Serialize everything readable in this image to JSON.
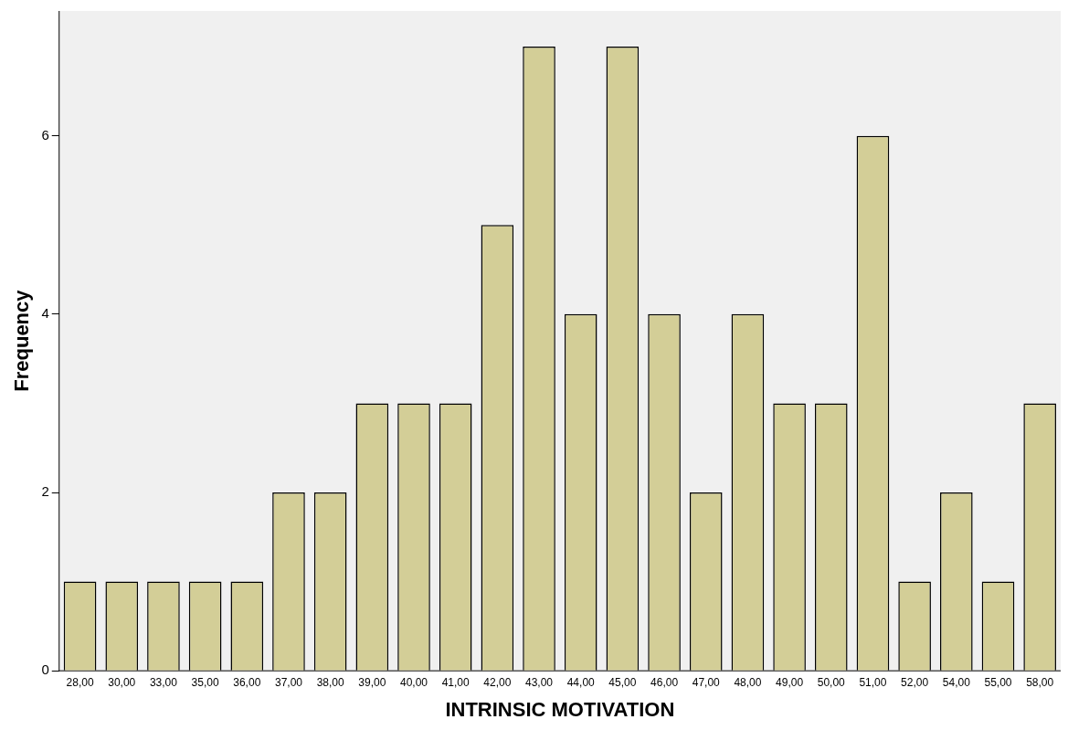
{
  "chart_data": {
    "type": "bar",
    "xlabel": "INTRINSIC MOTIVATION",
    "ylabel": "Frequency",
    "categories": [
      "28,00",
      "30,00",
      "33,00",
      "35,00",
      "36,00",
      "37,00",
      "38,00",
      "39,00",
      "40,00",
      "41,00",
      "42,00",
      "43,00",
      "44,00",
      "45,00",
      "46,00",
      "47,00",
      "48,00",
      "49,00",
      "50,00",
      "51,00",
      "52,00",
      "54,00",
      "55,00",
      "58,00"
    ],
    "values": [
      1,
      1,
      1,
      1,
      1,
      2,
      2,
      3,
      3,
      3,
      5,
      7,
      4,
      7,
      4,
      2,
      4,
      3,
      3,
      6,
      1,
      2,
      1,
      3
    ],
    "color": "#d3ce97",
    "ylim": [
      0,
      7.4
    ],
    "yticks": [
      0,
      2,
      4,
      6
    ]
  }
}
